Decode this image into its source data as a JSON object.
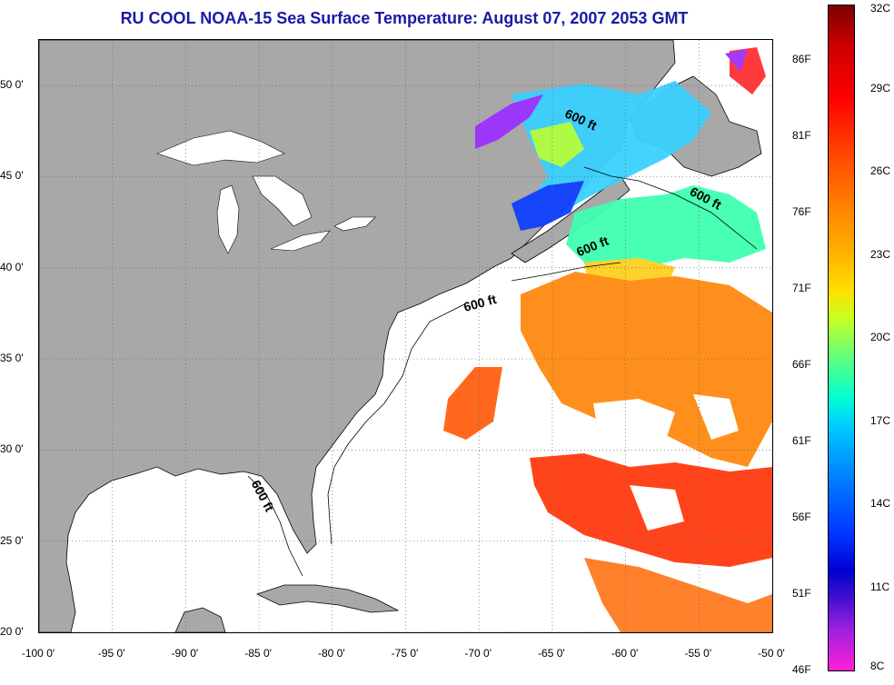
{
  "title": "RU COOL  NOAA-15  Sea Surface Temperature:  August 07, 2007 2053 GMT",
  "map": {
    "lon_range": [
      -100,
      -50
    ],
    "lat_range": [
      20,
      52.5
    ],
    "contour_label": "600 ft",
    "colors": {
      "land": "#a8a8a8",
      "ocean": "#ffffff",
      "coast": "#000000",
      "grid": "#888888"
    }
  },
  "x_ticks": [
    {
      "value": -100,
      "label": "-100 0'"
    },
    {
      "value": -95,
      "label": "-95 0'"
    },
    {
      "value": -90,
      "label": "-90 0'"
    },
    {
      "value": -85,
      "label": "-85 0'"
    },
    {
      "value": -80,
      "label": "-80 0'"
    },
    {
      "value": -75,
      "label": "-75 0'"
    },
    {
      "value": -70,
      "label": "-70 0'"
    },
    {
      "value": -65,
      "label": "-65 0'"
    },
    {
      "value": -60,
      "label": "-60 0'"
    },
    {
      "value": -55,
      "label": "-55 0'"
    },
    {
      "value": -50,
      "label": "-50 0'"
    }
  ],
  "y_ticks": [
    {
      "value": 50,
      "label": "50 0'"
    },
    {
      "value": 45,
      "label": "45 0'"
    },
    {
      "value": 40,
      "label": "40 0'"
    },
    {
      "value": 35,
      "label": "35 0'"
    },
    {
      "value": 30,
      "label": "30 0'"
    },
    {
      "value": 25,
      "label": "25 0'"
    },
    {
      "value": 20,
      "label": "20 0'"
    }
  ],
  "colorbar": {
    "f_labels": [
      "86F",
      "81F",
      "76F",
      "71F",
      "66F",
      "61F",
      "56F",
      "51F",
      "46F"
    ],
    "c_labels": [
      "32C",
      "29C",
      "26C",
      "23C",
      "20C",
      "17C",
      "14C",
      "11C",
      "8C"
    ],
    "f_range": [
      46,
      89.6
    ],
    "c_range": [
      8,
      32
    ]
  }
}
